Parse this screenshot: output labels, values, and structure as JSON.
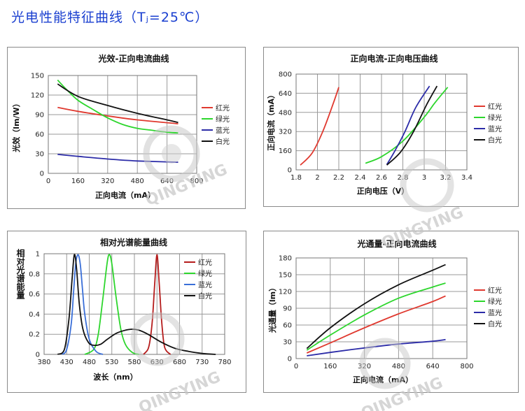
{
  "page": {
    "title": "光电性能特征曲线（Tⱼ=25℃）"
  },
  "watermark": {
    "text": "QINGYING"
  },
  "chart_data": [
    {
      "id": "efficacy",
      "type": "line",
      "title": "光效-正向电流曲线",
      "xlabel": "正向电流（mA）",
      "ylabel": "光效（lm/W）",
      "xlim": [
        0,
        800
      ],
      "ylim": [
        0,
        150
      ],
      "xticks": [
        0,
        160,
        320,
        480,
        640,
        800
      ],
      "yticks": [
        0,
        30,
        60,
        90,
        120,
        150
      ],
      "xtick_labels": [
        "0",
        "160",
        "320",
        "480",
        "640",
        "800"
      ],
      "ytick_labels": [
        "0",
        "30",
        "60",
        "90",
        "120",
        "150"
      ],
      "grid": true,
      "legend": "right",
      "series": [
        {
          "name": "红光",
          "color": "#e0392f",
          "x": [
            50,
            160,
            320,
            480,
            700
          ],
          "y": [
            101,
            95,
            88,
            82,
            76
          ]
        },
        {
          "name": "绿光",
          "color": "#2dd62d",
          "x": [
            50,
            100,
            160,
            240,
            320,
            400,
            480,
            560,
            640,
            700
          ],
          "y": [
            143,
            128,
            112,
            98,
            85,
            75,
            69,
            66,
            63,
            62
          ]
        },
        {
          "name": "蓝光",
          "color": "#2c2ca8",
          "x": [
            50,
            160,
            320,
            480,
            700
          ],
          "y": [
            29,
            26,
            22,
            19,
            17
          ]
        },
        {
          "name": "白光",
          "color": "#111111",
          "x": [
            50,
            160,
            320,
            480,
            640,
            700
          ],
          "y": [
            137,
            118,
            104,
            92,
            82,
            78
          ]
        }
      ]
    },
    {
      "id": "iv",
      "type": "line",
      "title": "正向电流-正向电压曲线",
      "xlabel": "正向电压（V）",
      "ylabel": "正向电流（mA）",
      "xlim": [
        1.8,
        3.4
      ],
      "ylim": [
        0,
        800
      ],
      "xticks": [
        1.8,
        2.0,
        2.2,
        2.4,
        2.6,
        2.8,
        3.0,
        3.2,
        3.4
      ],
      "yticks": [
        0,
        160,
        320,
        480,
        640,
        800
      ],
      "xtick_labels": [
        "1.8",
        "2",
        "2.2",
        "2.4",
        "2.6",
        "2.8",
        "3",
        "3.2",
        "3.4"
      ],
      "ytick_labels": [
        "0",
        "160",
        "320",
        "480",
        "640",
        "800"
      ],
      "grid": true,
      "legend": "right",
      "series": [
        {
          "name": "红光",
          "color": "#e0392f",
          "x": [
            1.84,
            1.95,
            2.05,
            2.15,
            2.2
          ],
          "y": [
            40,
            140,
            320,
            560,
            690
          ]
        },
        {
          "name": "绿光",
          "color": "#2dd62d",
          "x": [
            2.45,
            2.6,
            2.8,
            3.0,
            3.1,
            3.22
          ],
          "y": [
            55,
            110,
            240,
            440,
            560,
            690
          ]
        },
        {
          "name": "蓝光",
          "color": "#2c2ca8",
          "x": [
            2.65,
            2.72,
            2.82,
            2.92,
            3.05
          ],
          "y": [
            45,
            150,
            320,
            520,
            700
          ]
        },
        {
          "name": "白光",
          "color": "#111111",
          "x": [
            2.65,
            2.78,
            2.9,
            3.02,
            3.12
          ],
          "y": [
            40,
            150,
            320,
            540,
            700
          ]
        }
      ]
    },
    {
      "id": "spectrum",
      "type": "line",
      "title": "相对光谱能量曲线",
      "xlabel": "波长（nm）",
      "ylabel": "相对光谱能量",
      "xlim": [
        380,
        780
      ],
      "ylim": [
        0,
        1
      ],
      "xticks": [
        380,
        430,
        480,
        530,
        580,
        630,
        680,
        730,
        780
      ],
      "yticks": [
        0,
        0.2,
        0.4,
        0.6,
        0.8,
        1.0
      ],
      "xtick_labels": [
        "380",
        "430",
        "480",
        "530",
        "580",
        "630",
        "680",
        "730",
        "780"
      ],
      "ytick_labels": [
        "0",
        "0.2",
        "0.4",
        "0.6",
        "0.8",
        "1"
      ],
      "grid": true,
      "legend": "right",
      "series": [
        {
          "name": "红光",
          "color": "#b51c1c",
          "x": [
            600,
            610,
            615,
            620,
            625,
            630,
            635,
            640,
            645,
            650,
            660
          ],
          "y": [
            0,
            0.05,
            0.15,
            0.35,
            0.7,
            0.99,
            0.7,
            0.35,
            0.12,
            0.04,
            0
          ]
        },
        {
          "name": "绿光",
          "color": "#2dd62d",
          "x": [
            470,
            490,
            500,
            510,
            520,
            525,
            530,
            540,
            550,
            560,
            575,
            590
          ],
          "y": [
            0,
            0.05,
            0.2,
            0.55,
            0.92,
            0.99,
            0.9,
            0.55,
            0.25,
            0.1,
            0.02,
            0
          ]
        },
        {
          "name": "蓝光",
          "color": "#3a6fd8",
          "x": [
            420,
            430,
            440,
            445,
            450,
            455,
            460,
            465,
            470,
            480,
            495,
            510
          ],
          "y": [
            0,
            0.05,
            0.3,
            0.6,
            0.9,
            0.99,
            0.9,
            0.65,
            0.4,
            0.15,
            0.03,
            0
          ]
        },
        {
          "name": "白光",
          "color": "#111111",
          "x": [
            410,
            425,
            435,
            442,
            447,
            452,
            458,
            466,
            478,
            490,
            505,
            520,
            540,
            560,
            575,
            590,
            610,
            640,
            670,
            700,
            730,
            760
          ],
          "y": [
            0,
            0.05,
            0.35,
            0.75,
            0.99,
            0.85,
            0.5,
            0.25,
            0.12,
            0.09,
            0.1,
            0.15,
            0.21,
            0.24,
            0.25,
            0.24,
            0.2,
            0.12,
            0.06,
            0.03,
            0.01,
            0
          ]
        }
      ]
    },
    {
      "id": "flux",
      "type": "line",
      "title": "光通量-正向电流曲线",
      "xlabel": "正向电流（mA）",
      "ylabel": "光通量（lm）",
      "xlim": [
        0,
        800
      ],
      "ylim": [
        0,
        180
      ],
      "xticks": [
        0,
        160,
        320,
        480,
        640,
        800
      ],
      "yticks": [
        0,
        30,
        60,
        90,
        120,
        150,
        180
      ],
      "xtick_labels": [
        "0",
        "160",
        "320",
        "480",
        "640",
        "800"
      ],
      "ytick_labels": [
        "0",
        "30",
        "60",
        "90",
        "120",
        "150",
        "180"
      ],
      "grid": true,
      "legend": "right",
      "series": [
        {
          "name": "红光",
          "color": "#e0392f",
          "x": [
            50,
            160,
            320,
            480,
            640,
            700
          ],
          "y": [
            10,
            28,
            55,
            80,
            102,
            112
          ]
        },
        {
          "name": "绿光",
          "color": "#2dd62d",
          "x": [
            50,
            160,
            320,
            480,
            640,
            700
          ],
          "y": [
            15,
            42,
            78,
            108,
            128,
            135
          ]
        },
        {
          "name": "蓝光",
          "color": "#2c2ca8",
          "x": [
            50,
            160,
            320,
            480,
            640,
            700
          ],
          "y": [
            5,
            11,
            19,
            26,
            31,
            34
          ]
        },
        {
          "name": "白光",
          "color": "#111111",
          "x": [
            50,
            160,
            320,
            480,
            640,
            700
          ],
          "y": [
            18,
            55,
            98,
            132,
            158,
            168
          ]
        }
      ]
    }
  ]
}
